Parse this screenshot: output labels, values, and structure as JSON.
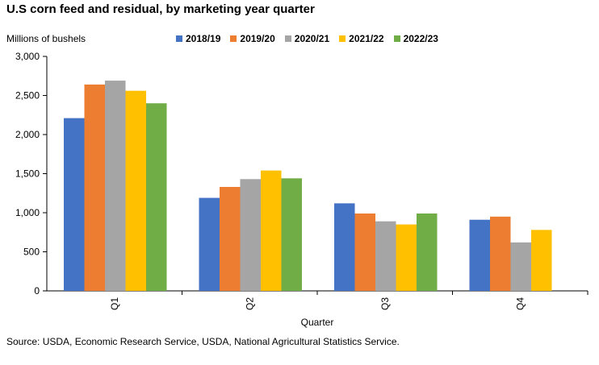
{
  "chart_data": {
    "type": "bar",
    "title": "U.S corn feed and residual, by marketing year quarter",
    "ylabel": "Millions of bushels",
    "xlabel": "Quarter",
    "categories": [
      "Q1",
      "Q2",
      "Q3",
      "Q4"
    ],
    "ylim": [
      0,
      3000
    ],
    "yticks": [
      "0",
      "500",
      "1,000",
      "1,500",
      "2,000",
      "2,500",
      "3,000"
    ],
    "ytick_values": [
      0,
      500,
      1000,
      1500,
      2000,
      2500,
      3000
    ],
    "legend_position": "top",
    "grid": false,
    "series": [
      {
        "name": "2018/19",
        "color": "#4472C4",
        "values": [
          2210,
          1190,
          1120,
          910
        ]
      },
      {
        "name": "2019/20",
        "color": "#ED7D31",
        "values": [
          2640,
          1330,
          990,
          950
        ]
      },
      {
        "name": "2020/21",
        "color": "#A5A5A5",
        "values": [
          2690,
          1430,
          890,
          620
        ]
      },
      {
        "name": "2021/22",
        "color": "#FFC000",
        "values": [
          2560,
          1540,
          850,
          780
        ]
      },
      {
        "name": "2022/23",
        "color": "#70AD47",
        "values": [
          2400,
          1440,
          990,
          null
        ]
      }
    ],
    "source": "Source: USDA, Economic Research Service, USDA, National Agricultural Statistics Service."
  }
}
